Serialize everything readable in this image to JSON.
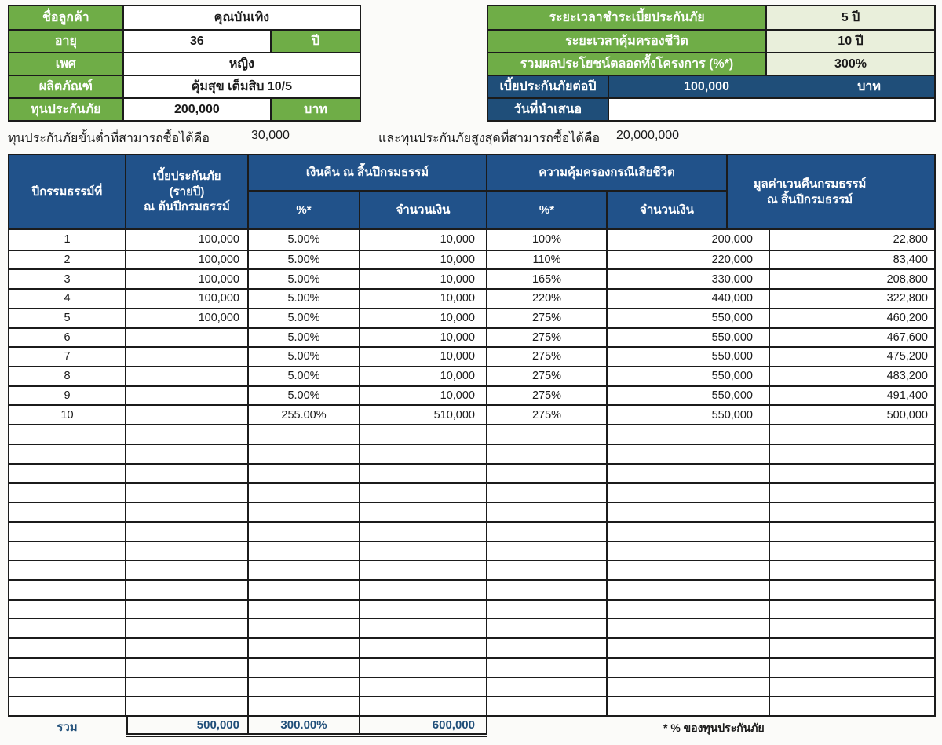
{
  "colors": {
    "green": "#6fad47",
    "light-green": "#e9efdb",
    "panel-blue": "#1f4e79",
    "header-blue": "#21528a",
    "border": "#1b1b1b",
    "total-blue": "#1f4e79"
  },
  "customer_panel": {
    "name_label": "ชื่อลูกค้า",
    "name_value": "คุณบันเทิง",
    "age_label": "อายุ",
    "age_value": "36",
    "age_unit": "ปี",
    "sex_label": "เพศ",
    "sex_value": "หญิง",
    "product_label": "ผลิตภัณฑ์",
    "product_value": "คุ้มสุข เต็มสิบ 10/5",
    "sum_assured_label": "ทุนประกันภัย",
    "sum_assured_value": "200,000",
    "sum_assured_unit": "บาท"
  },
  "policy_panel": {
    "pay_period_label": "ระยะเวลาชำระเบี้ยประกันภัย",
    "pay_period_value": "5 ปี",
    "coverage_period_label": "ระยะเวลาคุ้มครองชีวิต",
    "coverage_period_value": "10 ปี",
    "total_benefit_label": "รวมผลประโยชน์ตลอดทั้งโครงการ (%*)",
    "total_benefit_value": "300%",
    "annual_premium_label": "เบี้ยประกันภัยต่อปี",
    "annual_premium_value": "100,000",
    "annual_premium_unit": "บาท",
    "quote_date_label": "วันที่นำเสนอ",
    "quote_date_value": ""
  },
  "limits_line": {
    "min_label": "ทุนประกันภัยขั้นต่ำที่สามารถซื้อได้คือ",
    "min_value": "30,000",
    "max_label": "และทุนประกันภัยสูงสุดที่สามารถซื้อได้คือ",
    "max_value": "20,000,000"
  },
  "benefit_table": {
    "headers": {
      "policy_year": "ปีกรรมธรรม์ที่",
      "premium_line1": "เบี้ยประกันภัย",
      "premium_line2": "(รายปี)",
      "premium_line3": "ณ ต้นปีกรมธรรม์",
      "cashback_group": "เงินคืน ณ สิ้นปีกรมธรรม์",
      "death_group": "ความคุ้มครองกรณีเสียชีวิต",
      "pct": "%*",
      "amount": "จำนวนเงิน",
      "surrender_line1": "มูลค่าเวนคืนกรมธรรม์",
      "surrender_line2": "ณ สิ้นปีกรมธรรม์"
    },
    "rows": [
      [
        "1",
        "100,000",
        "5.00%",
        "10,000",
        "100%",
        "200,000",
        "22,800"
      ],
      [
        "2",
        "100,000",
        "5.00%",
        "10,000",
        "110%",
        "220,000",
        "83,400"
      ],
      [
        "3",
        "100,000",
        "5.00%",
        "10,000",
        "165%",
        "330,000",
        "208,800"
      ],
      [
        "4",
        "100,000",
        "5.00%",
        "10,000",
        "220%",
        "440,000",
        "322,800"
      ],
      [
        "5",
        "100,000",
        "5.00%",
        "10,000",
        "275%",
        "550,000",
        "460,200"
      ],
      [
        "6",
        "",
        "5.00%",
        "10,000",
        "275%",
        "550,000",
        "467,600"
      ],
      [
        "7",
        "",
        "5.00%",
        "10,000",
        "275%",
        "550,000",
        "475,200"
      ],
      [
        "8",
        "",
        "5.00%",
        "10,000",
        "275%",
        "550,000",
        "483,200"
      ],
      [
        "9",
        "",
        "5.00%",
        "10,000",
        "275%",
        "550,000",
        "491,400"
      ],
      [
        "10",
        "",
        "255.00%",
        "510,000",
        "275%",
        "550,000",
        "500,000"
      ]
    ],
    "empty_row_count": 15,
    "totals": {
      "label": "รวม",
      "premium_total": "500,000",
      "cashback_pct_total": "300.00%",
      "cashback_amount_total": "600,000"
    },
    "footnote": "* % ของทุนประกันภัย"
  }
}
